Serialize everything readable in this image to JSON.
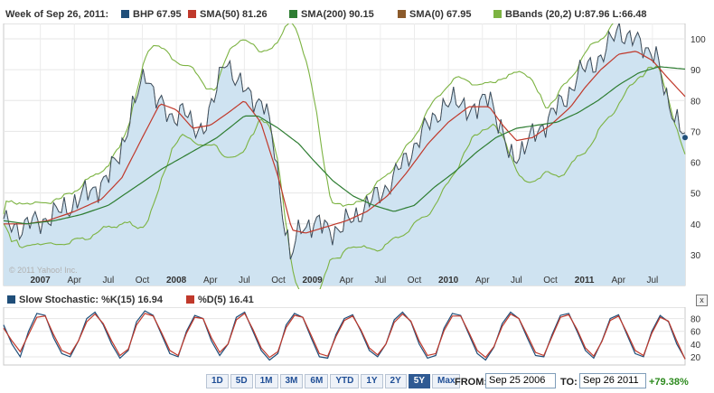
{
  "legend": {
    "week": "Week of Sep 26, 2011:",
    "items": [
      {
        "label": "BHP 67.95",
        "color": "#1f4e79"
      },
      {
        "label": "SMA(50) 81.26",
        "color": "#c0392b"
      },
      {
        "label": "SMA(200) 90.15",
        "color": "#2e7d32"
      },
      {
        "label": "SMA(0) 67.95",
        "color": "#8b5a2b"
      },
      {
        "label": "BBands (20,2) U:87.96 L:66.48",
        "color": "#7cb342"
      }
    ]
  },
  "watermark": "© 2011 Yahoo! Inc.",
  "oscillator": {
    "k_label": "Slow Stochastic: %K(15) 16.94",
    "d_label": "%D(5) 16.41",
    "k_color": "#1f4e79",
    "d_color": "#c0392b",
    "close_label": "x"
  },
  "range_buttons": [
    "1D",
    "5D",
    "1M",
    "3M",
    "6M",
    "YTD",
    "1Y",
    "2Y",
    "5Y",
    "Max"
  ],
  "active_range": "5Y",
  "from": {
    "label": "FROM:",
    "value": "Sep 25 2006"
  },
  "to": {
    "label": "TO:",
    "value": "Sep 26 2011"
  },
  "change": "+79.38%",
  "chart_data": [
    {
      "type": "line",
      "ylim": [
        20,
        105
      ],
      "y_ticks": [
        30,
        40,
        50,
        60,
        70,
        80,
        90,
        100
      ],
      "x_tick_labels": [
        "2007",
        "Apr",
        "Jul",
        "Oct",
        "2008",
        "Apr",
        "Jul",
        "Oct",
        "2009",
        "Apr",
        "Jul",
        "Oct",
        "2010",
        "Apr",
        "Jul",
        "Oct",
        "2011",
        "Apr",
        "Jul"
      ],
      "x_tick_pos": [
        2007.0,
        2007.25,
        2007.5,
        2007.75,
        2008.0,
        2008.25,
        2008.5,
        2008.75,
        2009.0,
        2009.25,
        2009.5,
        2009.75,
        2010.0,
        2010.25,
        2010.5,
        2010.75,
        2011.0,
        2011.25,
        2011.5
      ],
      "xlim": [
        2006.73,
        2011.74
      ],
      "grid": true,
      "series": [
        {
          "name": "BHP",
          "x": [
            2006.73,
            2006.85,
            2007.0,
            2007.15,
            2007.35,
            2007.5,
            2007.58,
            2007.68,
            2007.78,
            2007.86,
            2007.95,
            2008.05,
            2008.12,
            2008.2,
            2008.28,
            2008.36,
            2008.45,
            2008.55,
            2008.65,
            2008.72,
            2008.78,
            2008.84,
            2008.92,
            2009.0,
            2009.08,
            2009.2,
            2009.3,
            2009.4,
            2009.5,
            2009.6,
            2009.7,
            2009.82,
            2009.95,
            2010.1,
            2010.2,
            2010.3,
            2010.38,
            2010.45,
            2010.55,
            2010.65,
            2010.75,
            2010.85,
            2010.95,
            2011.05,
            2011.15,
            2011.25,
            2011.33,
            2011.42,
            2011.52,
            2011.6,
            2011.68,
            2011.74
          ],
          "y": [
            40,
            39,
            41,
            44,
            50,
            55,
            63,
            77,
            90,
            80,
            74,
            78,
            70,
            72,
            80,
            95,
            85,
            82,
            78,
            65,
            45,
            28,
            40,
            40,
            39,
            38,
            42,
            46,
            50,
            55,
            62,
            70,
            78,
            80,
            75,
            84,
            70,
            62,
            64,
            70,
            75,
            80,
            88,
            92,
            95,
            104,
            100,
            98,
            96,
            80,
            75,
            68
          ]
        },
        {
          "name": "SMA(50)",
          "x": [
            2006.73,
            2006.9,
            2007.05,
            2007.25,
            2007.45,
            2007.6,
            2007.75,
            2007.88,
            2008.0,
            2008.12,
            2008.25,
            2008.38,
            2008.5,
            2008.62,
            2008.75,
            2008.85,
            2008.95,
            2009.1,
            2009.25,
            2009.4,
            2009.55,
            2009.7,
            2009.85,
            2010.0,
            2010.15,
            2010.3,
            2010.4,
            2010.5,
            2010.62,
            2010.75,
            2010.9,
            2011.0,
            2011.12,
            2011.25,
            2011.38,
            2011.5,
            2011.62,
            2011.74
          ],
          "y": [
            40,
            40,
            41,
            44,
            48,
            55,
            68,
            79,
            77,
            71,
            72,
            76,
            80,
            73,
            55,
            38,
            37,
            39,
            41,
            44,
            49,
            57,
            66,
            73,
            78,
            78,
            72,
            67,
            68,
            72,
            78,
            84,
            90,
            95,
            96,
            93,
            87,
            81.3
          ]
        },
        {
          "name": "SMA(200)",
          "x": [
            2006.73,
            2006.9,
            2007.1,
            2007.3,
            2007.5,
            2007.7,
            2007.9,
            2008.1,
            2008.3,
            2008.5,
            2008.6,
            2008.75,
            2008.9,
            2009.0,
            2009.15,
            2009.3,
            2009.45,
            2009.6,
            2009.75,
            2009.9,
            2010.05,
            2010.2,
            2010.35,
            2010.5,
            2010.65,
            2010.8,
            2010.95,
            2011.1,
            2011.25,
            2011.4,
            2011.55,
            2011.74
          ],
          "y": [
            41,
            40,
            41,
            43,
            46,
            52,
            58,
            63,
            68,
            75,
            75,
            71,
            66,
            61,
            54,
            49,
            46,
            44,
            46,
            52,
            57,
            63,
            68,
            71,
            72,
            73,
            76,
            80,
            85,
            89,
            91,
            90.2
          ]
        }
      ]
    },
    {
      "type": "line",
      "ylim": [
        10,
        95
      ],
      "y_ticks": [
        20,
        40,
        60,
        80
      ],
      "xlim": [
        0,
        1
      ],
      "series": [
        {
          "name": "%K(15)",
          "values": [
            70,
            40,
            20,
            60,
            88,
            85,
            50,
            25,
            20,
            45,
            80,
            90,
            70,
            40,
            18,
            30,
            75,
            92,
            85,
            55,
            25,
            20,
            60,
            85,
            80,
            45,
            22,
            40,
            82,
            90,
            60,
            30,
            15,
            25,
            70,
            88,
            82,
            50,
            20,
            18,
            55,
            80,
            86,
            60,
            30,
            20,
            40,
            78,
            90,
            75,
            40,
            18,
            22,
            65,
            88,
            85,
            55,
            25,
            15,
            35,
            72,
            90,
            80,
            50,
            22,
            20,
            55,
            85,
            88,
            60,
            30,
            18,
            45,
            80,
            86,
            55,
            25,
            20,
            60,
            85,
            75,
            40,
            17
          ]
        },
        {
          "name": "%D(5)",
          "values": [
            65,
            45,
            28,
            55,
            82,
            84,
            55,
            30,
            24,
            45,
            75,
            87,
            72,
            45,
            22,
            32,
            70,
            88,
            84,
            58,
            30,
            22,
            57,
            82,
            80,
            50,
            27,
            40,
            78,
            88,
            63,
            34,
            19,
            28,
            66,
            85,
            82,
            54,
            25,
            21,
            52,
            77,
            84,
            62,
            34,
            23,
            40,
            74,
            87,
            76,
            45,
            22,
            25,
            61,
            84,
            84,
            58,
            30,
            19,
            36,
            68,
            87,
            80,
            54,
            27,
            22,
            52,
            82,
            86,
            63,
            34,
            21,
            44,
            77,
            84,
            58,
            30,
            22,
            57,
            82,
            76,
            45,
            16.4
          ]
        }
      ]
    }
  ]
}
